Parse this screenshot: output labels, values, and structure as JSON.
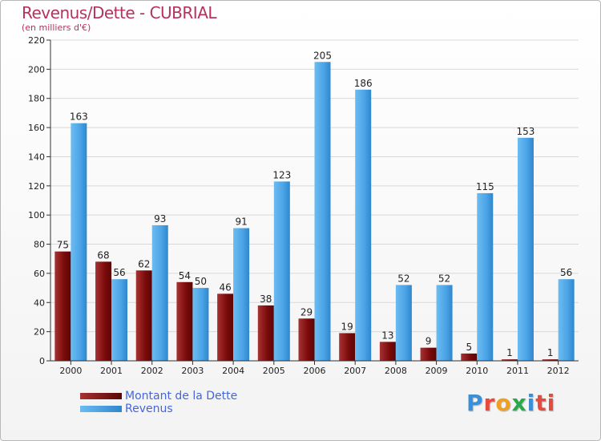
{
  "header": {
    "title": "Revenus/Dette - CUBRIAL",
    "subtitle": "(en milliers d'€)"
  },
  "legend": {
    "debt_label": "Montant de la Dette",
    "revenue_label": "Revenus"
  },
  "logo": {
    "text": "Proxiti",
    "letters": [
      "P",
      "r",
      "o",
      "x",
      "i",
      "ti"
    ]
  },
  "colors": {
    "debt": "#7a0a0a",
    "debt_light": "#a83232",
    "revenue": "#4aa3e6",
    "revenue_light": "#6cbcf2",
    "grid": "#d8d8d8"
  },
  "chart_data": {
    "type": "bar",
    "title": "Revenus/Dette - CUBRIAL",
    "subtitle": "(en milliers d'€)",
    "categories": [
      "2000",
      "2001",
      "2002",
      "2003",
      "2004",
      "2005",
      "2006",
      "2007",
      "2008",
      "2009",
      "2010",
      "2011",
      "2012"
    ],
    "series": [
      {
        "name": "Montant de la Dette",
        "values": [
          75,
          68,
          62,
          54,
          46,
          38,
          29,
          19,
          13,
          9,
          5,
          1,
          1
        ]
      },
      {
        "name": "Revenus",
        "values": [
          163,
          56,
          93,
          50,
          91,
          123,
          205,
          186,
          52,
          52,
          115,
          153,
          56
        ]
      }
    ],
    "ylim": [
      0,
      220
    ],
    "yticks": [
      0,
      20,
      40,
      60,
      80,
      100,
      120,
      140,
      160,
      180,
      200,
      220
    ],
    "grid": true,
    "legend_position": "bottom-left"
  }
}
